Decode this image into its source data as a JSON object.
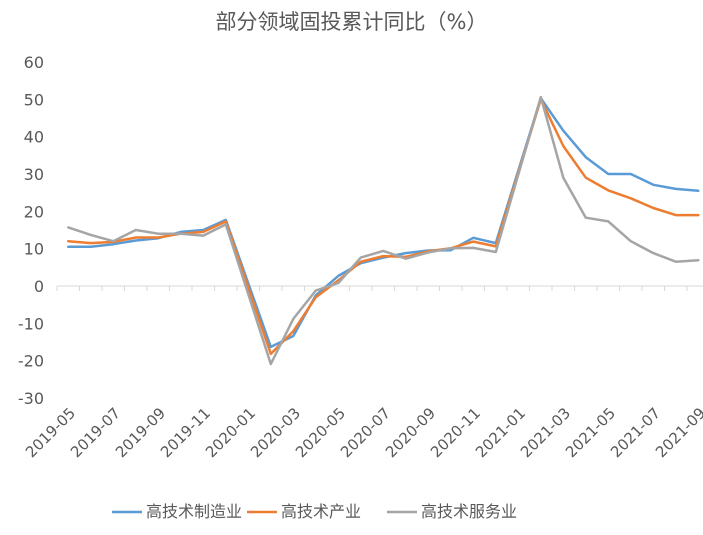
{
  "chart_data": {
    "type": "line",
    "title": "部分领域固投累计同比（%）",
    "xlabel": "",
    "ylabel": "",
    "ylim": [
      -30,
      60
    ],
    "yticks": [
      60,
      50,
      40,
      30,
      20,
      10,
      0,
      -10,
      -20,
      -30
    ],
    "grid": false,
    "legend_position": "bottom",
    "x": [
      "2019-05",
      "2019-06",
      "2019-07",
      "2019-08",
      "2019-09",
      "2019-10",
      "2019-11",
      "2019-12",
      "2020-02",
      "2020-03",
      "2020-04",
      "2020-05",
      "2020-06",
      "2020-07",
      "2020-08",
      "2020-09",
      "2020-10",
      "2020-11",
      "2020-12",
      "2021-02",
      "2021-03",
      "2021-04",
      "2021-05",
      "2021-06",
      "2021-07",
      "2021-08",
      "2021-09"
    ],
    "x_tick_labels": [
      "2019-05",
      "2019-07",
      "2019-09",
      "2019-11",
      "2020-01",
      "2020-03",
      "2020-05",
      "2020-07",
      "2020-09",
      "2020-11",
      "2021-01",
      "2021-03",
      "2021-05",
      "2021-07",
      "2021-09"
    ],
    "series": [
      {
        "name": "高技术制造业",
        "color": "#5b9bd5",
        "values": [
          10.5,
          10.5,
          11.2,
          12.2,
          12.8,
          14.5,
          15.0,
          17.7,
          -16.3,
          -13.4,
          -2.5,
          2.7,
          6.1,
          7.6,
          8.8,
          9.5,
          9.6,
          12.9,
          11.5,
          50.3,
          41.6,
          34.5,
          30.0,
          30.0,
          27.1,
          26.0,
          25.5
        ]
      },
      {
        "name": "高技术产业",
        "color": "#ed7d31",
        "values": [
          12.0,
          11.5,
          11.8,
          13.0,
          13.0,
          14.0,
          14.5,
          17.3,
          -18.2,
          -12.1,
          -3.0,
          1.5,
          6.5,
          8.0,
          7.8,
          9.3,
          10.1,
          11.9,
          10.6,
          50.0,
          37.5,
          29.0,
          25.6,
          23.5,
          20.9,
          19.0,
          19.0
        ]
      },
      {
        "name": "高技术服务业",
        "color": "#a5a5a5",
        "values": [
          15.7,
          13.7,
          12.0,
          15.0,
          14.0,
          14.0,
          13.5,
          16.5,
          -20.9,
          -8.8,
          -1.2,
          0.8,
          7.6,
          9.4,
          7.3,
          9.0,
          10.1,
          10.2,
          9.1,
          50.6,
          29.0,
          18.3,
          17.3,
          12.0,
          8.8,
          6.5,
          6.9
        ]
      }
    ]
  }
}
